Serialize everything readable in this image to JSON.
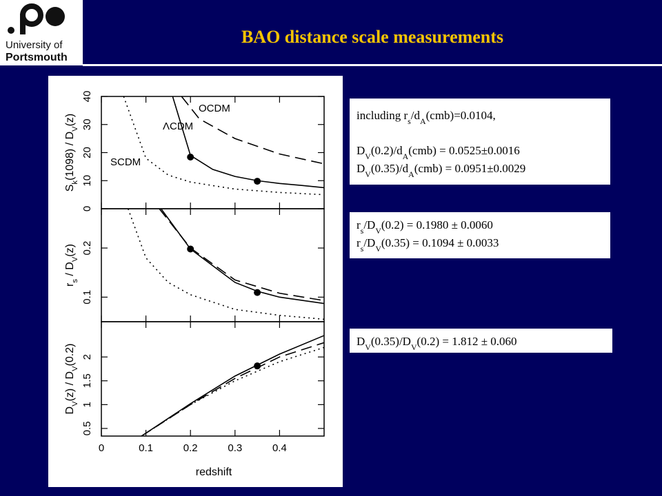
{
  "header": {
    "title": "BAO distance scale measurements",
    "logo": [
      "University of",
      "Portsmouth"
    ]
  },
  "boxes": [
    [
      [
        "including r",
        "s",
        "/d",
        "A",
        "(cmb)=0.0104,"
      ],
      [
        "D",
        "V",
        "(0.2)/d",
        "A",
        "(cmb)   = 0.0525±0.0016"
      ],
      [
        "D",
        "V",
        "(0.35)/d",
        "A",
        "(cmb) = 0.0951±0.0029"
      ]
    ],
    [
      [
        "r",
        "s",
        "/D",
        "V",
        "(0.2)   = 0.1980 ± 0.0060"
      ],
      [
        "r",
        "s",
        "/D",
        "V",
        "(0.35) = 0.1094 ± 0.0033"
      ]
    ],
    [
      [
        "D",
        "V",
        "(0.35)/D",
        "V",
        "(0.2) = 1.812 ± 0.060"
      ]
    ]
  ],
  "chart_data": [
    {
      "type": "line",
      "ylabel": [
        "S",
        "k",
        "(1098) / D",
        "V",
        "(z)"
      ],
      "xlim": [
        0,
        0.5
      ],
      "ylim": [
        0,
        40
      ],
      "xticks": [
        0,
        0.1,
        0.2,
        0.3,
        0.4
      ],
      "yticks": [
        0,
        10,
        20,
        30,
        40
      ],
      "series": [
        {
          "name": "OCDM",
          "style": "dashed",
          "x": [
            0.18,
            0.22,
            0.3,
            0.4,
            0.5
          ],
          "values": [
            40,
            32,
            25,
            19.5,
            16
          ]
        },
        {
          "name": "ΛCDM",
          "style": "solid",
          "x": [
            0.16,
            0.2,
            0.25,
            0.3,
            0.35,
            0.4,
            0.45,
            0.5
          ],
          "values": [
            40,
            19,
            14,
            11.5,
            10,
            9,
            8.3,
            7.5
          ]
        },
        {
          "name": "SCDM",
          "style": "dotted",
          "x": [
            0.05,
            0.1,
            0.15,
            0.2,
            0.3,
            0.4,
            0.5
          ],
          "values": [
            40,
            18,
            12,
            9.5,
            7,
            5.8,
            5
          ]
        }
      ],
      "points": {
        "x": [
          0.2,
          0.35
        ],
        "values": [
          18.4,
          9.8
        ]
      }
    },
    {
      "type": "line",
      "ylabel": [
        "r",
        "s",
        " / D",
        "V",
        "(z)"
      ],
      "xlim": [
        0,
        0.5
      ],
      "ylim": [
        0.05,
        0.28
      ],
      "xticks": [
        0,
        0.1,
        0.2,
        0.3,
        0.4
      ],
      "yticks": [
        0.1,
        0.2
      ],
      "series": [
        {
          "style": "dashed",
          "x": [
            0.13,
            0.2,
            0.3,
            0.4,
            0.5
          ],
          "values": [
            0.28,
            0.2,
            0.135,
            0.108,
            0.093
          ]
        },
        {
          "style": "solid",
          "x": [
            0.134,
            0.2,
            0.3,
            0.35,
            0.4,
            0.5
          ],
          "values": [
            0.28,
            0.198,
            0.13,
            0.112,
            0.1,
            0.087
          ]
        },
        {
          "style": "dotted",
          "x": [
            0.06,
            0.1,
            0.15,
            0.2,
            0.3,
            0.4,
            0.5
          ],
          "values": [
            0.28,
            0.18,
            0.13,
            0.105,
            0.075,
            0.063,
            0.055
          ]
        }
      ],
      "points": {
        "x": [
          0.2,
          0.35
        ],
        "values": [
          0.198,
          0.1094
        ]
      }
    },
    {
      "type": "line",
      "ylabel": [
        "D",
        "V",
        "(z) / D",
        "V",
        "(0.2)"
      ],
      "xlabel": "redshift",
      "xlim": [
        0,
        0.5
      ],
      "ylim": [
        0.34,
        2.74
      ],
      "xticks": [
        0,
        0.1,
        0.2,
        0.3,
        0.4
      ],
      "yticks": [
        0.5,
        1,
        1.5,
        2
      ],
      "series": [
        {
          "style": "dashed",
          "x": [
            0.09,
            0.2,
            0.3,
            0.4,
            0.5
          ],
          "values": [
            0.34,
            1.0,
            1.55,
            2.0,
            2.3
          ]
        },
        {
          "style": "solid",
          "x": [
            0.09,
            0.2,
            0.3,
            0.4,
            0.5
          ],
          "values": [
            0.34,
            1.02,
            1.6,
            2.06,
            2.45
          ]
        },
        {
          "style": "dotted",
          "x": [
            0.09,
            0.2,
            0.3,
            0.4,
            0.5
          ],
          "values": [
            0.34,
            1.0,
            1.5,
            1.9,
            2.2
          ]
        }
      ],
      "points": {
        "x": [
          0.35
        ],
        "values": [
          1.812
        ]
      }
    }
  ]
}
